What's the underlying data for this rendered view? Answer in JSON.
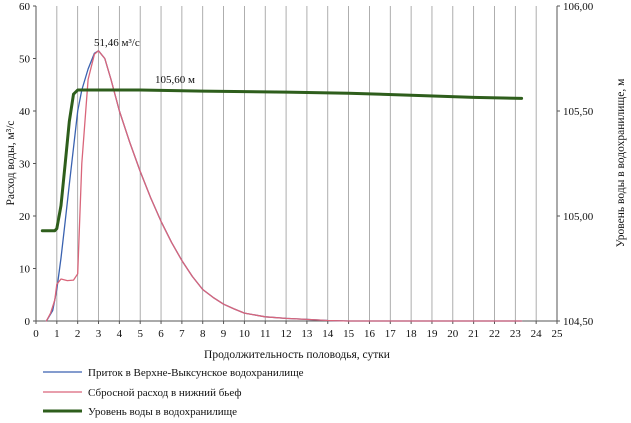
{
  "chart_data": {
    "type": "line",
    "xlabel": "Продолжительность половодья, сутки",
    "ylabel_left": "Расход воды, м³/с",
    "ylabel_right": "Уровень воды в водохранилище, м",
    "xlim": [
      0,
      25
    ],
    "ylim_left": [
      0,
      60
    ],
    "ylim_right": [
      104.5,
      106.0
    ],
    "x_ticks": [
      "0",
      "1",
      "2",
      "3",
      "4",
      "5",
      "6",
      "7",
      "8",
      "9",
      "10",
      "11",
      "12",
      "13",
      "14",
      "15",
      "16",
      "17",
      "18",
      "19",
      "20",
      "21",
      "22",
      "23",
      "24",
      "25"
    ],
    "y_ticks_left": [
      "0",
      "10",
      "20",
      "30",
      "40",
      "50",
      "60"
    ],
    "y_ticks_right": [
      "104,50",
      "105,00",
      "105,50",
      "106,00"
    ],
    "grid": "vertical",
    "legend_position": "bottom-left",
    "annotations": {
      "peak_flow": "51,46 м³/с",
      "max_level": "105,60 м"
    },
    "series": [
      {
        "name": "Приток в Верхне-Выксунское водохранилище",
        "axis": "left",
        "color": "#3a62b0",
        "x": [
          0.5,
          0.8,
          1.0,
          1.2,
          1.4,
          1.6,
          1.8,
          2.0,
          2.2,
          2.5,
          2.8,
          3.0,
          3.3,
          3.6,
          4.0,
          4.5,
          5.0,
          5.5,
          6.0,
          6.5,
          7.0,
          7.5,
          8.0,
          8.5,
          9.0,
          9.5,
          10.0,
          11.0,
          12.0,
          13.0,
          14.0,
          15.0,
          16.0,
          18.0,
          20.0,
          22.0,
          23.3
        ],
        "y": [
          0,
          2,
          6,
          12,
          19,
          26,
          33,
          40,
          44,
          48,
          51,
          51.46,
          50,
          46,
          40,
          34,
          28.5,
          23.5,
          19,
          15,
          11.5,
          8.5,
          6,
          4.5,
          3.2,
          2.3,
          1.5,
          0.8,
          0.5,
          0.3,
          0.1,
          0,
          0,
          0,
          0,
          0,
          0
        ]
      },
      {
        "name": "Сбросной расход в нижний бьеф",
        "axis": "left",
        "color": "#d9657a",
        "x": [
          0.5,
          0.7,
          0.9,
          1.0,
          1.2,
          1.5,
          1.8,
          2.0,
          2.2,
          2.5,
          2.8,
          3.0,
          3.3,
          3.6,
          4.0,
          4.5,
          5.0,
          5.5,
          6.0,
          6.5,
          7.0,
          7.5,
          8.0,
          8.5,
          9.0,
          9.5,
          10.0,
          11.0,
          12.0,
          13.0,
          14.0,
          15.0,
          16.0,
          18.0,
          20.0,
          22.0,
          23.3
        ],
        "y": [
          0,
          1.5,
          4,
          7,
          8,
          7.7,
          7.8,
          9,
          30,
          46,
          50.8,
          51.46,
          50,
          46,
          40,
          34,
          28.5,
          23.5,
          19,
          15,
          11.5,
          8.5,
          6,
          4.5,
          3.2,
          2.3,
          1.5,
          0.8,
          0.5,
          0.3,
          0.1,
          0,
          0,
          0,
          0,
          0,
          0
        ]
      },
      {
        "name": "Уровень воды в водохранилище",
        "axis": "right",
        "color": "#2e5e1c",
        "x": [
          0.3,
          0.6,
          0.9,
          1.0,
          1.2,
          1.4,
          1.6,
          1.8,
          2.0,
          2.2,
          3.0,
          5.0,
          8.0,
          12.0,
          15.0,
          18.0,
          21.0,
          23.3
        ],
        "y": [
          104.93,
          104.93,
          104.93,
          104.94,
          105.05,
          105.25,
          105.45,
          105.58,
          105.6,
          105.6,
          105.6,
          105.6,
          105.595,
          105.59,
          105.585,
          105.575,
          105.565,
          105.56
        ]
      }
    ]
  }
}
